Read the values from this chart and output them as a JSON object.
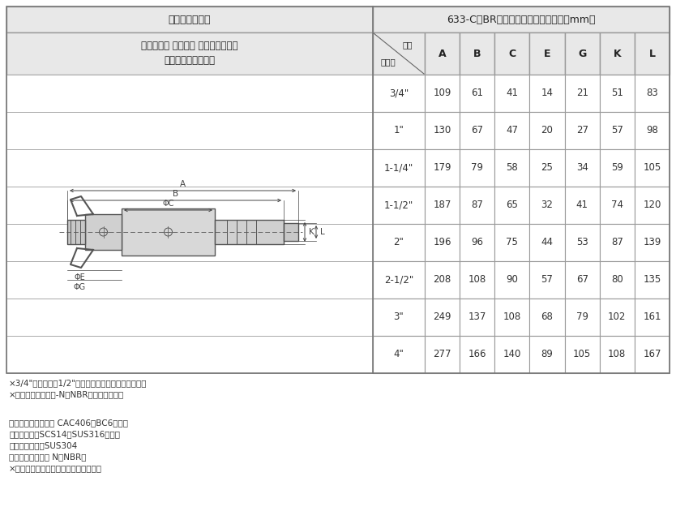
{
  "title_left": "カムアーム継手",
  "title_right": "633-C　BR　サイズ別寸法表（単位：mm）",
  "product_name_line1": "カムロック カプラー ホースシャンク",
  "product_name_line2": "ブロンズ（青銅）製",
  "col_header_size_top": "位置",
  "col_header_size_bottom": "サイズ",
  "col_headers": [
    "A",
    "B",
    "C",
    "E",
    "G",
    "K",
    "L"
  ],
  "rows": [
    [
      "3/4\"",
      109,
      61,
      41,
      14,
      21,
      51,
      83
    ],
    [
      "1\"",
      130,
      67,
      47,
      20,
      27,
      57,
      98
    ],
    [
      "1-1/4\"",
      179,
      79,
      58,
      25,
      34,
      59,
      105
    ],
    [
      "1-1/2\"",
      187,
      87,
      65,
      32,
      41,
      74,
      120
    ],
    [
      "2\"",
      196,
      96,
      75,
      44,
      53,
      87,
      139
    ],
    [
      "2-1/2\"",
      208,
      108,
      90,
      57,
      67,
      80,
      135
    ],
    [
      "3\"",
      249,
      137,
      108,
      68,
      79,
      102,
      161
    ],
    [
      "4\"",
      277,
      166,
      140,
      89,
      105,
      108,
      167
    ]
  ],
  "note1": "×3/4\"カプラーは1/2\"アダプターにも接続できます。",
  "note2": "×ガスケットはブナ-N（NBR）を標準表備。",
  "material1": "継手本体：ブロンズ CAC406（BC6）青銅",
  "material2": "カムアーム：SCS14（SUS316相当）",
  "material3": "ピン・リング：SUS304",
  "material4": "ガスケット：ブナ N（NBR）",
  "material5": "×ガスケットは流体により選定できます",
  "header_bg": "#e8e8e8",
  "border_color": "#999999",
  "text_color": "#333333",
  "fig_width": 8.34,
  "fig_height": 6.25,
  "dpi": 100
}
